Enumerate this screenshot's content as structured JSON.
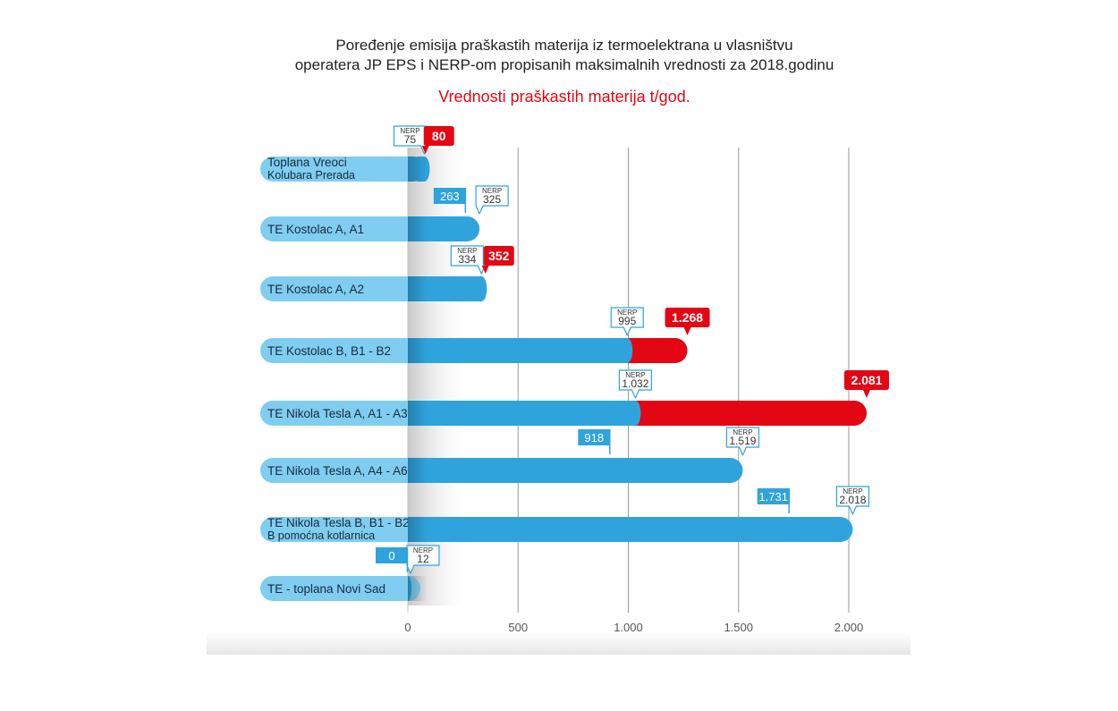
{
  "chart_data": {
    "type": "bar",
    "orientation": "horizontal",
    "title": [
      "Poređenje emisija praškastih materija iz termoelektrana u vlasništvu",
      "operatera JP EPS i NERP-om propisanih maksimalnih vrednosti za 2018.godinu"
    ],
    "subtitle": "Vrednosti praškastih materija t/god.",
    "callout_prefix": "NERP",
    "categories": [
      [
        "Toplana Vreoci",
        "Kolubara Prerada"
      ],
      [
        "TE Kostolac A, A1"
      ],
      [
        "TE Kostolac A, A2"
      ],
      [
        "TE Kostolac B, B1 - B2"
      ],
      [
        "TE Nikola Tesla A, A1 - A3"
      ],
      [
        "TE Nikola Tesla A, A4 - A6"
      ],
      [
        "TE Nikola Tesla B, B1 - B2",
        "B pomoćna kotlarnica"
      ],
      [
        "TE - toplana Novi Sad"
      ]
    ],
    "series": [
      {
        "name": "NERP",
        "values": [
          75,
          325,
          334,
          995,
          1032,
          1519,
          2018,
          12
        ],
        "labels": [
          "75",
          "325",
          "334",
          "995",
          "1.032",
          "1.519",
          "2.018",
          "12"
        ]
      },
      {
        "values": [
          80,
          263,
          352,
          1268,
          2081,
          918,
          1731,
          0
        ],
        "labels": [
          "80",
          "263",
          "352",
          "1.268",
          "2.081",
          "918",
          "1.731",
          "0"
        ]
      }
    ],
    "xticks": [
      0,
      500,
      1000,
      1500,
      2000
    ],
    "xtick_labels": [
      "0",
      "500",
      "1.000",
      "1.500",
      "2.000"
    ],
    "xlim": [
      0,
      2100
    ],
    "grid": true,
    "colors": {
      "within_limit": "#2fa3dc",
      "over_limit": "#e30613",
      "label_pill": "#7fcdf1",
      "subtitle": "#e30613"
    }
  }
}
